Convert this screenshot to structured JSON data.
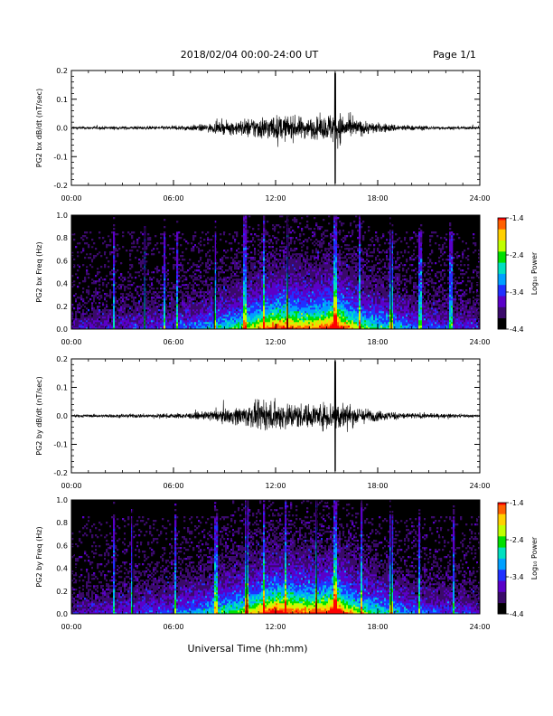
{
  "header": {
    "title": "2018/02/04  00:00-24:00 UT",
    "page": "Page 1/1"
  },
  "footer": {
    "xlabel": "Universal Time (hh:mm)"
  },
  "time_ticks": [
    "00:00",
    "06:00",
    "12:00",
    "18:00",
    "24:00"
  ],
  "colorbar": {
    "label": "Log₁₀ Power",
    "ticks": [
      "-1.4",
      "-2.4",
      "-3.4",
      "-4.4"
    ],
    "range": [
      -4.4,
      -1.4
    ],
    "colors": [
      "#000000",
      "#3a0a6a",
      "#5a00c8",
      "#2030ff",
      "#00a0ff",
      "#00e0c0",
      "#00e000",
      "#c0ff00",
      "#ffd000",
      "#ff6000",
      "#ff0000"
    ]
  },
  "chart_data": [
    {
      "type": "line",
      "ylabel": "PG2 bx dB/dt (nT/sec)",
      "xlim": [
        0,
        24
      ],
      "ylim": [
        -0.2,
        0.2
      ],
      "yticks": [
        "0.2",
        "0.1",
        "0.0",
        "-0.1",
        "-0.2"
      ],
      "line_color": "#000000",
      "series": [
        {
          "x": [
            0,
            2,
            4,
            6,
            7.5,
            9,
            10,
            11,
            12,
            13,
            14,
            15,
            15.5,
            16,
            17,
            18,
            20,
            22,
            24
          ],
          "amplitude": [
            0.008,
            0.01,
            0.01,
            0.012,
            0.02,
            0.035,
            0.05,
            0.07,
            0.075,
            0.07,
            0.06,
            0.07,
            0.2,
            0.07,
            0.045,
            0.03,
            0.015,
            0.01,
            0.008
          ]
        }
      ]
    },
    {
      "type": "heatmap",
      "ylabel": "PG2 bx Freq (Hz)",
      "xlim": [
        0,
        24
      ],
      "ylim": [
        0,
        1.0
      ],
      "yticks": [
        "1.0",
        "0.8",
        "0.6",
        "0.4",
        "0.2",
        "0.0"
      ],
      "colorbar_range": [
        -4.4,
        -1.4
      ],
      "activity_profile": {
        "x": [
          0,
          3,
          6,
          8,
          10,
          11,
          12,
          13,
          14,
          15,
          15.5,
          16,
          17,
          18,
          20,
          24
        ],
        "intensity": [
          0.15,
          0.2,
          0.25,
          0.35,
          0.5,
          0.65,
          0.8,
          0.75,
          0.7,
          0.8,
          0.95,
          0.75,
          0.55,
          0.45,
          0.3,
          0.2
        ]
      },
      "vertical_streaks": [
        2.5,
        4.3,
        5.5,
        6.2,
        8.4,
        10.2,
        11.3,
        12.7,
        15.5,
        16.9,
        18.8,
        20.5,
        22.3
      ]
    },
    {
      "type": "line",
      "ylabel": "PG2 by dB/dt (nT/sec)",
      "xlim": [
        0,
        24
      ],
      "ylim": [
        -0.2,
        0.2
      ],
      "yticks": [
        "0.2",
        "0.1",
        "0.0",
        "-0.1",
        "-0.2"
      ],
      "line_color": "#000000",
      "series": [
        {
          "x": [
            0,
            2,
            4,
            6,
            7.5,
            9,
            10,
            11,
            12,
            13,
            14,
            15,
            15.5,
            16,
            17,
            18,
            20,
            22,
            24
          ],
          "amplitude": [
            0.008,
            0.01,
            0.012,
            0.014,
            0.02,
            0.04,
            0.06,
            0.08,
            0.09,
            0.08,
            0.07,
            0.08,
            0.2,
            0.08,
            0.05,
            0.03,
            0.018,
            0.012,
            0.008
          ]
        }
      ]
    },
    {
      "type": "heatmap",
      "ylabel": "PG2 by Freq (Hz)",
      "xlim": [
        0,
        24
      ],
      "ylim": [
        0,
        1.0
      ],
      "yticks": [
        "1.0",
        "0.8",
        "0.6",
        "0.4",
        "0.2",
        "0.0"
      ],
      "colorbar_range": [
        -4.4,
        -1.4
      ],
      "activity_profile": {
        "x": [
          0,
          3,
          6,
          8,
          10,
          11,
          12,
          13,
          14,
          15,
          15.5,
          16,
          17,
          18,
          20,
          24
        ],
        "intensity": [
          0.15,
          0.22,
          0.28,
          0.4,
          0.55,
          0.7,
          0.85,
          0.8,
          0.75,
          0.8,
          0.95,
          0.75,
          0.55,
          0.45,
          0.3,
          0.2
        ]
      },
      "vertical_streaks": [
        2.5,
        3.6,
        6.1,
        8.5,
        10.3,
        11.3,
        12.6,
        14.4,
        15.5,
        17.0,
        18.8,
        20.4,
        22.5
      ]
    }
  ]
}
